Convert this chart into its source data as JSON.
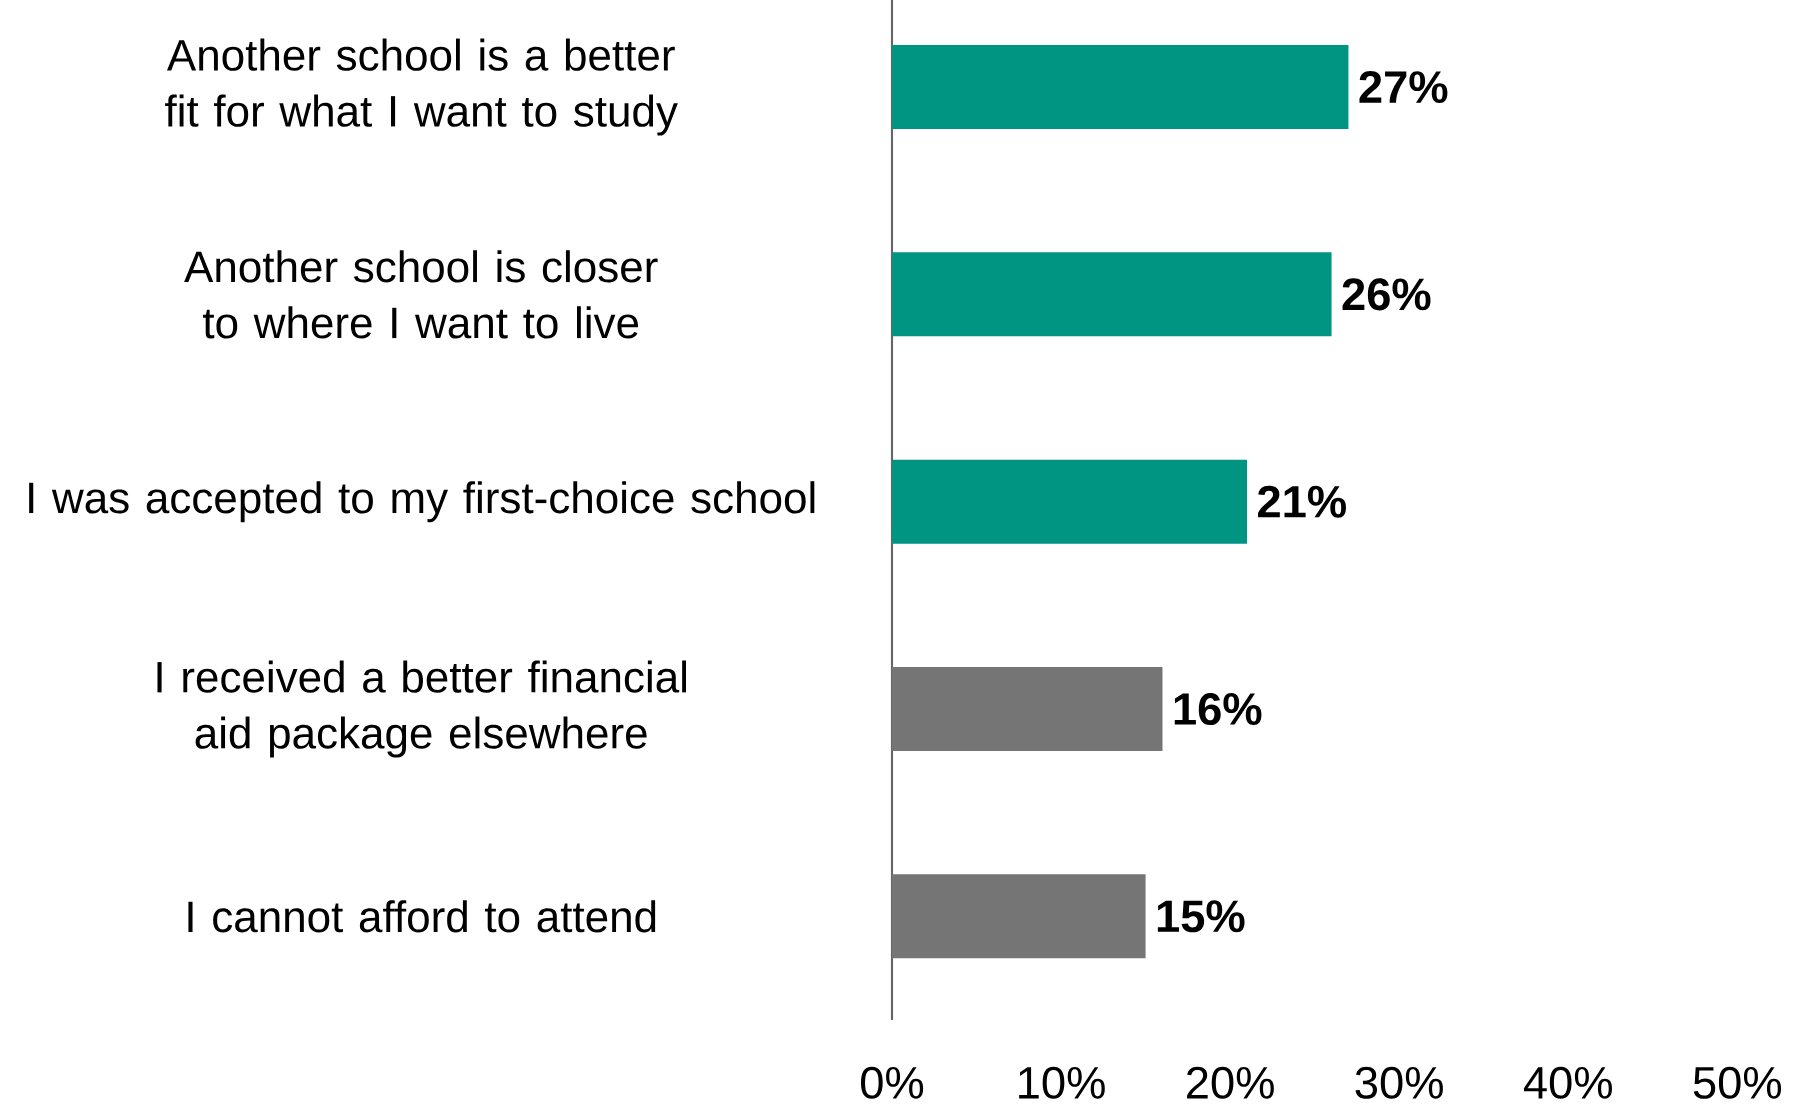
{
  "chart_data": {
    "type": "bar",
    "orientation": "horizontal",
    "categories": [
      "Another school is a better fit for what I want to study",
      "Another school is closer to where I want to live",
      "I was accepted to my first-choice school",
      "I received a better financial aid package elsewhere",
      "I cannot afford to attend"
    ],
    "values": [
      27,
      26,
      21,
      16,
      15
    ],
    "value_labels": [
      "27%",
      "26%",
      "21%",
      "16%",
      "15%"
    ],
    "colors": [
      "#009482",
      "#009482",
      "#009482",
      "#757575",
      "#757575"
    ],
    "xlim": [
      0,
      50
    ],
    "xticks": [
      {
        "value": 0,
        "label": "0%"
      },
      {
        "value": 10,
        "label": "10%"
      },
      {
        "value": 20,
        "label": "20%"
      },
      {
        "value": 30,
        "label": "30%"
      },
      {
        "value": 40,
        "label": "40%"
      },
      {
        "value": 50,
        "label": "50%"
      }
    ],
    "grid": false
  }
}
